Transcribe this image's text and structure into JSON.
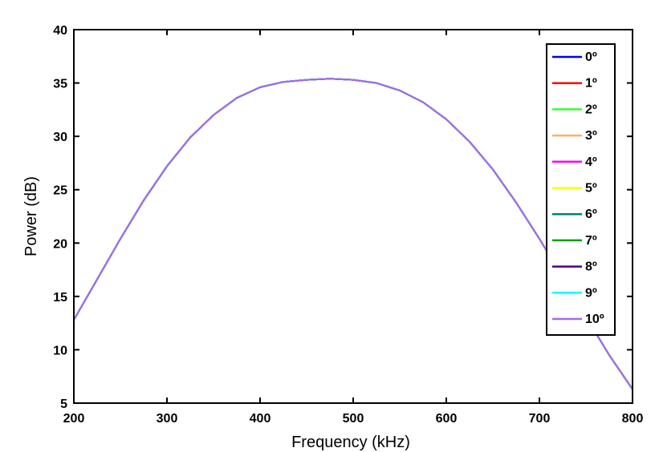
{
  "chart_data": {
    "type": "line",
    "title": "",
    "xlabel": "Frequency (kHz)",
    "ylabel": "Power (dB)",
    "xlim": [
      200,
      800
    ],
    "ylim": [
      5,
      40
    ],
    "x_ticks": [
      200,
      300,
      400,
      500,
      600,
      700,
      800
    ],
    "y_ticks": [
      5,
      10,
      15,
      20,
      25,
      30,
      35,
      40
    ],
    "grid": false,
    "legend_position": "top-right",
    "x": [
      200,
      225,
      250,
      275,
      300,
      325,
      350,
      375,
      400,
      425,
      450,
      475,
      500,
      525,
      550,
      575,
      600,
      625,
      650,
      675,
      700,
      725,
      750,
      775,
      800
    ],
    "series": [
      {
        "name": "0º",
        "color": "#0000ee",
        "values": [
          12.8,
          16.6,
          20.4,
          24.0,
          27.2,
          29.9,
          32.0,
          33.6,
          34.6,
          35.1,
          35.3,
          35.4,
          35.3,
          35.0,
          34.3,
          33.2,
          31.6,
          29.5,
          26.9,
          23.8,
          20.4,
          16.8,
          13.1,
          9.5,
          6.3
        ]
      },
      {
        "name": "1º",
        "color": "#ff0000",
        "values": [
          12.8,
          16.6,
          20.4,
          24.0,
          27.2,
          29.9,
          32.0,
          33.6,
          34.6,
          35.1,
          35.3,
          35.4,
          35.3,
          35.0,
          34.3,
          33.2,
          31.6,
          29.5,
          26.9,
          23.8,
          20.4,
          16.8,
          13.1,
          9.5,
          6.3
        ]
      },
      {
        "name": "2º",
        "color": "#33ff33",
        "values": [
          12.8,
          16.6,
          20.4,
          24.0,
          27.2,
          29.9,
          32.0,
          33.6,
          34.6,
          35.1,
          35.3,
          35.4,
          35.3,
          35.0,
          34.3,
          33.2,
          31.6,
          29.5,
          26.9,
          23.8,
          20.4,
          16.8,
          13.1,
          9.5,
          6.3
        ]
      },
      {
        "name": "3º",
        "color": "#ffb060",
        "values": [
          12.8,
          16.6,
          20.4,
          24.0,
          27.2,
          29.9,
          32.0,
          33.6,
          34.6,
          35.1,
          35.3,
          35.4,
          35.3,
          35.0,
          34.3,
          33.2,
          31.6,
          29.5,
          26.9,
          23.8,
          20.4,
          16.8,
          13.1,
          9.5,
          6.3
        ]
      },
      {
        "name": "4º",
        "color": "#ff00ff",
        "values": [
          12.8,
          16.6,
          20.4,
          24.0,
          27.2,
          29.9,
          32.0,
          33.6,
          34.6,
          35.1,
          35.3,
          35.4,
          35.3,
          35.0,
          34.3,
          33.2,
          31.6,
          29.5,
          26.9,
          23.8,
          20.4,
          16.8,
          13.1,
          9.5,
          6.3
        ]
      },
      {
        "name": "5º",
        "color": "#ffff00",
        "values": [
          12.8,
          16.6,
          20.4,
          24.0,
          27.2,
          29.9,
          32.0,
          33.6,
          34.6,
          35.1,
          35.3,
          35.4,
          35.3,
          35.0,
          34.3,
          33.2,
          31.6,
          29.5,
          26.9,
          23.8,
          20.4,
          16.8,
          13.1,
          9.5,
          6.3
        ]
      },
      {
        "name": "6º",
        "color": "#008080",
        "values": [
          12.8,
          16.6,
          20.4,
          24.0,
          27.2,
          29.9,
          32.0,
          33.6,
          34.6,
          35.1,
          35.3,
          35.4,
          35.3,
          35.0,
          34.3,
          33.2,
          31.6,
          29.5,
          26.9,
          23.8,
          20.4,
          16.8,
          13.1,
          9.5,
          6.3
        ]
      },
      {
        "name": "7º",
        "color": "#00a000",
        "values": [
          12.8,
          16.6,
          20.4,
          24.0,
          27.2,
          29.9,
          32.0,
          33.6,
          34.6,
          35.1,
          35.3,
          35.4,
          35.3,
          35.0,
          34.3,
          33.2,
          31.6,
          29.5,
          26.9,
          23.8,
          20.4,
          16.8,
          13.1,
          9.5,
          6.3
        ]
      },
      {
        "name": "8º",
        "color": "#4b0082",
        "values": [
          12.8,
          16.6,
          20.4,
          24.0,
          27.2,
          29.9,
          32.0,
          33.6,
          34.6,
          35.1,
          35.3,
          35.4,
          35.3,
          35.0,
          34.3,
          33.2,
          31.6,
          29.5,
          26.9,
          23.8,
          20.4,
          16.8,
          13.1,
          9.5,
          6.3
        ]
      },
      {
        "name": "9º",
        "color": "#00ffff",
        "values": [
          12.8,
          16.6,
          20.4,
          24.0,
          27.2,
          29.9,
          32.0,
          33.6,
          34.6,
          35.1,
          35.3,
          35.4,
          35.3,
          35.0,
          34.3,
          33.2,
          31.6,
          29.5,
          26.9,
          23.8,
          20.4,
          16.8,
          13.1,
          9.5,
          6.3
        ]
      },
      {
        "name": "10º",
        "color": "#aa66ee",
        "values": [
          12.8,
          16.6,
          20.4,
          24.0,
          27.2,
          29.9,
          32.0,
          33.6,
          34.6,
          35.1,
          35.3,
          35.4,
          35.3,
          35.0,
          34.3,
          33.2,
          31.6,
          29.5,
          26.9,
          23.8,
          20.4,
          16.8,
          13.1,
          9.5,
          6.3
        ]
      }
    ]
  }
}
